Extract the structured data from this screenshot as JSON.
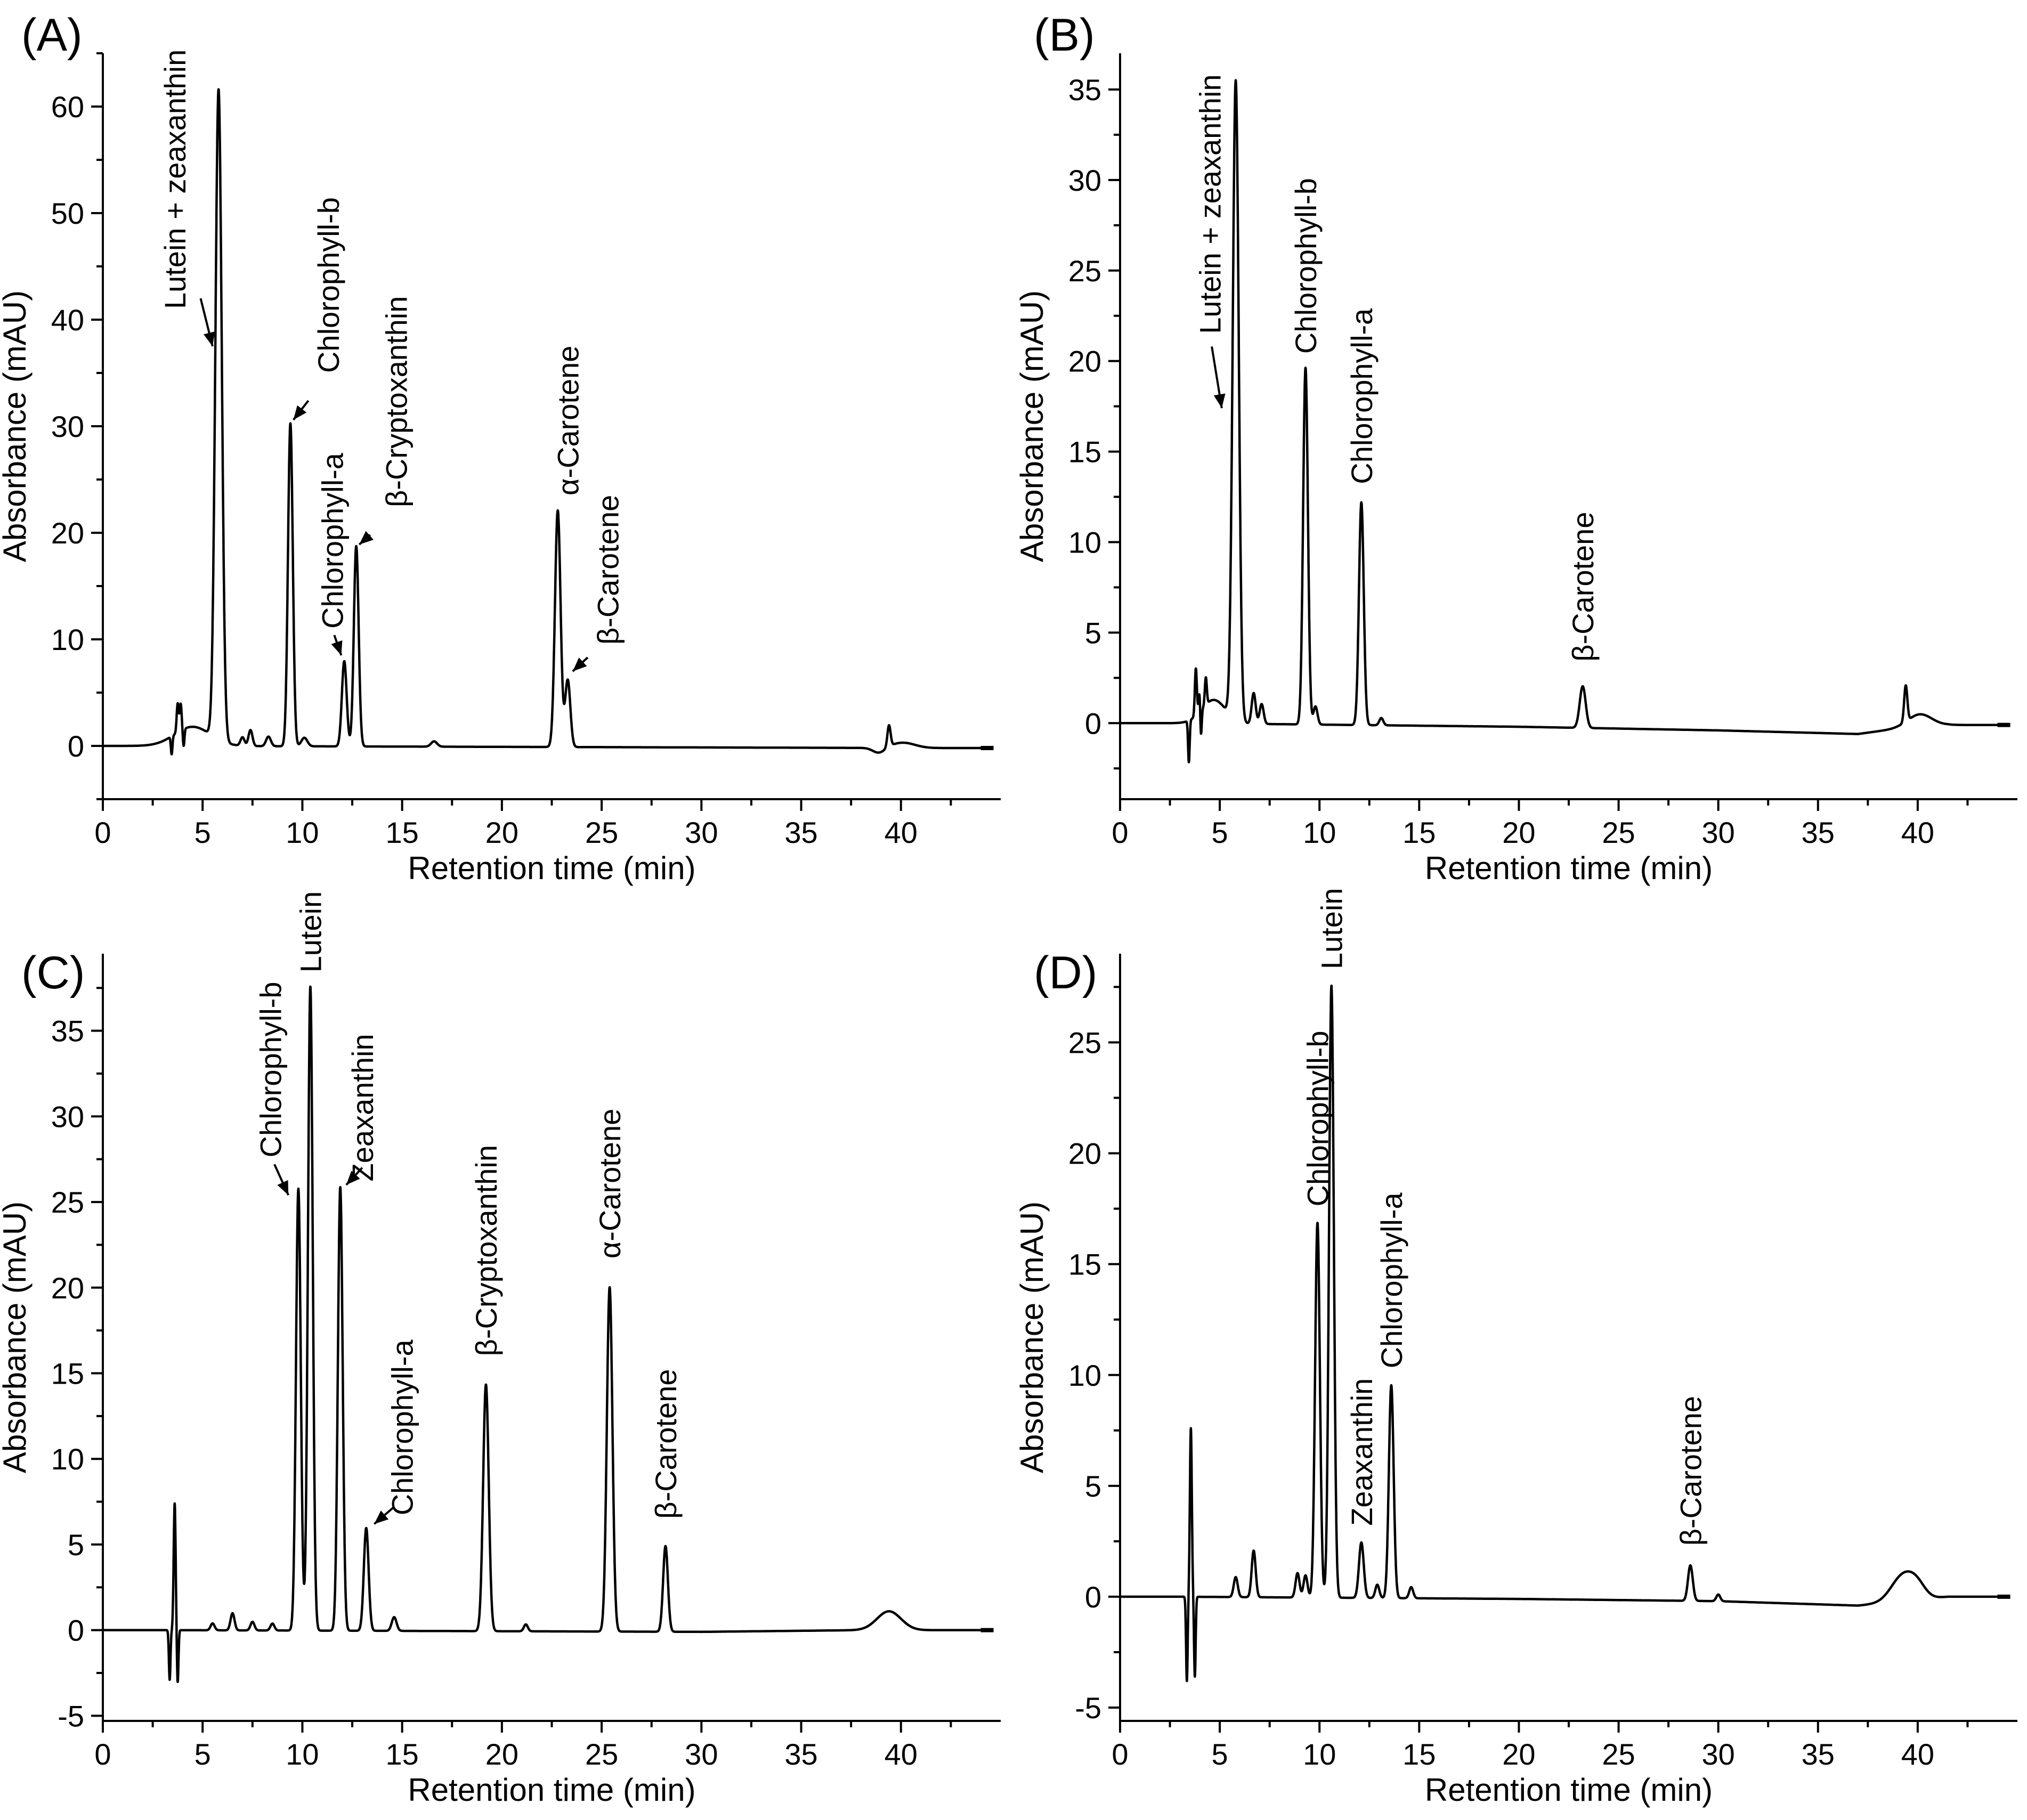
{
  "figure": {
    "description_text": []
  },
  "chart_data": [
    {
      "type": "line",
      "panel_label": "(A)",
      "xlabel": "Retention time (min)",
      "ylabel": "Absorbance (mAU)",
      "xlim": [
        0,
        45
      ],
      "ylim": [
        -5,
        65
      ],
      "xticks": [
        0,
        5,
        10,
        15,
        20,
        25,
        30,
        35,
        40
      ],
      "yticks": [
        0,
        10,
        20,
        30,
        40,
        50,
        60
      ],
      "baseline": [
        [
          0,
          0
        ],
        [
          3.2,
          0
        ],
        [
          40.5,
          -0.2
        ],
        [
          44.2,
          -0.2
        ]
      ],
      "dips": [
        {
          "rt": 3.45,
          "value": -1.7,
          "width": 0.04
        },
        {
          "rt": 4.05,
          "value": -1.6,
          "width": 0.04
        },
        {
          "rt": 38.9,
          "value": -0.5,
          "width": 0.3
        }
      ],
      "bumps": [
        {
          "rt": 4.5,
          "value": 1.8,
          "width": 0.9
        },
        {
          "rt": 40.1,
          "value": 0.5,
          "width": 0.6
        }
      ],
      "peaks": [
        {
          "rt": 3.75,
          "height": 2.7,
          "width": 0.05,
          "label": ""
        },
        {
          "rt": 3.9,
          "height": 2.5,
          "width": 0.05,
          "label": ""
        },
        {
          "rt": 5.8,
          "height": 61,
          "width": 0.16,
          "label": "Lutein + zeaxanthin"
        },
        {
          "rt": 7.0,
          "height": 0.8,
          "width": 0.1,
          "label": ""
        },
        {
          "rt": 7.4,
          "height": 1.5,
          "width": 0.1,
          "label": ""
        },
        {
          "rt": 8.3,
          "height": 0.9,
          "width": 0.12,
          "label": ""
        },
        {
          "rt": 9.4,
          "height": 30.3,
          "width": 0.12,
          "label": "Chlorophyll-b"
        },
        {
          "rt": 10.1,
          "height": 0.8,
          "width": 0.15,
          "label": ""
        },
        {
          "rt": 12.1,
          "height": 8.0,
          "width": 0.12,
          "label": "Chlorophyll-a"
        },
        {
          "rt": 12.7,
          "height": 18.8,
          "width": 0.12,
          "label": "β-Cryptoxanthin"
        },
        {
          "rt": 16.6,
          "height": 0.5,
          "width": 0.15,
          "label": ""
        },
        {
          "rt": 22.8,
          "height": 22.2,
          "width": 0.14,
          "label": "α-Carotene"
        },
        {
          "rt": 23.3,
          "height": 6.3,
          "width": 0.13,
          "label": "β-Carotene"
        },
        {
          "rt": 39.4,
          "height": 2.0,
          "width": 0.08,
          "label": ""
        }
      ],
      "annotations": [
        {
          "text": "Lutein + zeaxanthin",
          "rotation": -90,
          "tx": 3.6,
          "ty": 41,
          "arrow": {
            "x1": 4.9,
            "y1": 42,
            "x2": 5.5,
            "y2": 37.5
          }
        },
        {
          "text": "Chlorophyll-b",
          "rotation": -90,
          "tx": 11.3,
          "ty": 35,
          "arrow": {
            "x1": 10.3,
            "y1": 32.4,
            "x2": 9.55,
            "y2": 30.6
          }
        },
        {
          "text": "Chlorophyll-a",
          "rotation": -90,
          "tx": 11.5,
          "ty": 11,
          "arrow": {
            "x1": 11.6,
            "y1": 10.4,
            "x2": 11.95,
            "y2": 8.5
          }
        },
        {
          "text": "β-Cryptoxanthin",
          "rotation": -90,
          "tx": 14.7,
          "ty": 22.4,
          "arrow": {
            "x1": 13.4,
            "y1": 19.8,
            "x2": 12.85,
            "y2": 18.9
          }
        },
        {
          "text": "α-Carotene",
          "rotation": -90,
          "tx": 23.3,
          "ty": 23.5,
          "arrow": null
        },
        {
          "text": "β-Carotene",
          "rotation": -90,
          "tx": 25.3,
          "ty": 9.5,
          "arrow": {
            "x1": 24.3,
            "y1": 8.3,
            "x2": 23.55,
            "y2": 7.0
          }
        }
      ]
    },
    {
      "type": "line",
      "panel_label": "(B)",
      "xlabel": "Retention time (min)",
      "ylabel": "Absorbance (mAU)",
      "xlim": [
        0,
        45
      ],
      "ylim": [
        -4.2,
        37
      ],
      "xticks": [
        0,
        5,
        10,
        15,
        20,
        25,
        30,
        35,
        40
      ],
      "yticks": [
        0,
        5,
        10,
        15,
        20,
        25,
        30,
        35
      ],
      "baseline": [
        [
          0,
          0
        ],
        [
          3.2,
          0
        ],
        [
          20,
          -0.2
        ],
        [
          30,
          -0.4
        ],
        [
          37,
          -0.6
        ],
        [
          39,
          -0.3
        ],
        [
          41.5,
          -0.1
        ],
        [
          44.2,
          -0.1
        ]
      ],
      "dips": [
        {
          "rt": 3.45,
          "value": -2.3,
          "width": 0.04
        },
        {
          "rt": 4.05,
          "value": -2.1,
          "width": 0.04
        }
      ],
      "bumps": [
        {
          "rt": 4.7,
          "value": 1.3,
          "width": 0.6
        },
        {
          "rt": 40.1,
          "value": 0.7,
          "width": 0.6
        }
      ],
      "peaks": [
        {
          "rt": 3.8,
          "height": 2.6,
          "width": 0.05,
          "label": ""
        },
        {
          "rt": 4.0,
          "height": 1.5,
          "width": 0.05,
          "label": ""
        },
        {
          "rt": 4.3,
          "height": 1.5,
          "width": 0.05,
          "label": ""
        },
        {
          "rt": 5.8,
          "height": 35.3,
          "width": 0.15,
          "label": "Lutein + zeaxanthin"
        },
        {
          "rt": 6.7,
          "height": 1.7,
          "width": 0.1,
          "label": ""
        },
        {
          "rt": 7.1,
          "height": 1.1,
          "width": 0.1,
          "label": ""
        },
        {
          "rt": 9.3,
          "height": 19.7,
          "width": 0.12,
          "label": "Chlorophyll-b"
        },
        {
          "rt": 9.8,
          "height": 1.0,
          "width": 0.1,
          "label": ""
        },
        {
          "rt": 12.1,
          "height": 12.3,
          "width": 0.12,
          "label": "Chlorophyll-a"
        },
        {
          "rt": 13.1,
          "height": 0.4,
          "width": 0.1,
          "label": ""
        },
        {
          "rt": 23.2,
          "height": 2.3,
          "width": 0.15,
          "label": "β-Carotene"
        },
        {
          "rt": 39.4,
          "height": 2.0,
          "width": 0.08,
          "label": ""
        }
      ],
      "annotations": [
        {
          "text": "Lutein + zeaxanthin",
          "rotation": -90,
          "tx": 4.5,
          "ty": 21.5,
          "arrow": {
            "x1": 4.6,
            "y1": 20.8,
            "x2": 5.1,
            "y2": 17.4
          }
        },
        {
          "text": "Chlorophyll-b",
          "rotation": -90,
          "tx": 9.3,
          "ty": 20.4,
          "arrow": null
        },
        {
          "text": "Chlorophyll-a",
          "rotation": -90,
          "tx": 12.1,
          "ty": 13.2,
          "arrow": null
        },
        {
          "text": "β-Carotene",
          "rotation": -90,
          "tx": 23.2,
          "ty": 3.4,
          "arrow": null
        }
      ]
    },
    {
      "type": "line",
      "panel_label": "(C)",
      "xlabel": "Retention time (min)",
      "ylabel": "Absorbance (mAU)",
      "xlim": [
        0,
        45
      ],
      "ylim": [
        -5.3,
        39.5
      ],
      "xticks": [
        0,
        5,
        10,
        15,
        20,
        25,
        30,
        35,
        40
      ],
      "yticks": [
        -5,
        0,
        5,
        10,
        15,
        20,
        25,
        30,
        35
      ],
      "baseline": [
        [
          0,
          0
        ],
        [
          3.2,
          0
        ],
        [
          30,
          -0.1
        ],
        [
          38,
          0
        ],
        [
          41.5,
          0
        ],
        [
          44.2,
          0
        ]
      ],
      "dips": [
        {
          "rt": 3.35,
          "value": -2.9,
          "width": 0.04
        },
        {
          "rt": 3.75,
          "value": -3.1,
          "width": 0.04
        }
      ],
      "bumps": [
        {
          "rt": 39.4,
          "value": 1.1,
          "width": 0.6
        }
      ],
      "peaks": [
        {
          "rt": 3.6,
          "height": 7.4,
          "width": 0.05,
          "label": ""
        },
        {
          "rt": 5.5,
          "height": 0.4,
          "width": 0.1,
          "label": ""
        },
        {
          "rt": 6.5,
          "height": 1.0,
          "width": 0.1,
          "label": ""
        },
        {
          "rt": 7.5,
          "height": 0.5,
          "width": 0.1,
          "label": ""
        },
        {
          "rt": 8.5,
          "height": 0.4,
          "width": 0.1,
          "label": ""
        },
        {
          "rt": 9.8,
          "height": 25.8,
          "width": 0.12,
          "label": "Chlorophyll-b"
        },
        {
          "rt": 10.4,
          "height": 37.6,
          "width": 0.12,
          "label": "Lutein"
        },
        {
          "rt": 11.9,
          "height": 25.9,
          "width": 0.12,
          "label": "Zeaxanthin"
        },
        {
          "rt": 13.2,
          "height": 6.0,
          "width": 0.12,
          "label": "Chlorophyll-a"
        },
        {
          "rt": 14.6,
          "height": 0.8,
          "width": 0.12,
          "label": ""
        },
        {
          "rt": 19.2,
          "height": 14.4,
          "width": 0.14,
          "label": "β-Cryptoxanthin"
        },
        {
          "rt": 21.2,
          "height": 0.4,
          "width": 0.1,
          "label": ""
        },
        {
          "rt": 25.4,
          "height": 20.1,
          "width": 0.14,
          "label": "α-Carotene"
        },
        {
          "rt": 28.2,
          "height": 5.0,
          "width": 0.12,
          "label": "β-Carotene"
        }
      ],
      "annotations": [
        {
          "text": "Chlorophyll-b",
          "rotation": -90,
          "tx": 8.4,
          "ty": 27.6,
          "arrow": {
            "x1": 8.6,
            "y1": 27.2,
            "x2": 9.3,
            "y2": 25.4
          }
        },
        {
          "text": "Lutein",
          "rotation": -90,
          "tx": 10.4,
          "ty": 38.4,
          "arrow": null
        },
        {
          "text": "Zeaxanthin",
          "rotation": -90,
          "tx": 13.0,
          "ty": 26.2,
          "arrow": {
            "x1": 13.0,
            "y1": 27.0,
            "x2": 12.2,
            "y2": 26.0
          }
        },
        {
          "text": "Chlorophyll-a",
          "rotation": -90,
          "tx": 15.0,
          "ty": 6.7,
          "arrow": {
            "x1": 14.6,
            "y1": 7.2,
            "x2": 13.6,
            "y2": 6.2
          }
        },
        {
          "text": "β-Cryptoxanthin",
          "rotation": -90,
          "tx": 19.2,
          "ty": 16.0,
          "arrow": null
        },
        {
          "text": "α-Carotene",
          "rotation": -90,
          "tx": 25.4,
          "ty": 21.7,
          "arrow": null
        },
        {
          "text": "β-Carotene",
          "rotation": -90,
          "tx": 28.2,
          "ty": 6.5,
          "arrow": null
        }
      ]
    },
    {
      "type": "line",
      "panel_label": "(D)",
      "xlabel": "Retention time (min)",
      "ylabel": "Absorbance (mAU)",
      "xlim": [
        0,
        45
      ],
      "ylim": [
        -5.6,
        29
      ],
      "xticks": [
        0,
        5,
        10,
        15,
        20,
        25,
        30,
        35,
        40
      ],
      "yticks": [
        -5,
        0,
        5,
        10,
        15,
        20,
        25
      ],
      "baseline": [
        [
          0,
          0
        ],
        [
          3.2,
          0
        ],
        [
          20,
          -0.1
        ],
        [
          30,
          -0.2
        ],
        [
          37,
          -0.4
        ],
        [
          41.5,
          0
        ],
        [
          44.2,
          0
        ]
      ],
      "dips": [
        {
          "rt": 3.35,
          "value": -3.8,
          "width": 0.04
        },
        {
          "rt": 3.75,
          "value": -3.6,
          "width": 0.04
        }
      ],
      "bumps": [
        {
          "rt": 39.3,
          "value": 1.2,
          "width": 0.6
        },
        {
          "rt": 40.0,
          "value": 0.4,
          "width": 0.4
        }
      ],
      "peaks": [
        {
          "rt": 3.55,
          "height": 7.6,
          "width": 0.05,
          "label": ""
        },
        {
          "rt": 5.8,
          "height": 0.9,
          "width": 0.1,
          "label": ""
        },
        {
          "rt": 6.7,
          "height": 2.1,
          "width": 0.1,
          "label": ""
        },
        {
          "rt": 8.9,
          "height": 1.1,
          "width": 0.1,
          "label": ""
        },
        {
          "rt": 9.3,
          "height": 1.0,
          "width": 0.1,
          "label": ""
        },
        {
          "rt": 9.9,
          "height": 16.9,
          "width": 0.12,
          "label": "Chlorophyll-b"
        },
        {
          "rt": 10.6,
          "height": 27.6,
          "width": 0.12,
          "label": "Lutein"
        },
        {
          "rt": 12.1,
          "height": 2.5,
          "width": 0.12,
          "label": "Zeaxanthin"
        },
        {
          "rt": 12.9,
          "height": 0.6,
          "width": 0.1,
          "label": ""
        },
        {
          "rt": 13.6,
          "height": 9.6,
          "width": 0.12,
          "label": "Chlorophyll-a"
        },
        {
          "rt": 14.6,
          "height": 0.5,
          "width": 0.1,
          "label": ""
        },
        {
          "rt": 28.6,
          "height": 1.6,
          "width": 0.12,
          "label": "β-Carotene"
        },
        {
          "rt": 30.0,
          "height": 0.3,
          "width": 0.1,
          "label": ""
        }
      ],
      "annotations": [
        {
          "text": "Chlorophyll-b",
          "rotation": -90,
          "tx": 9.9,
          "ty": 17.6,
          "arrow": null
        },
        {
          "text": "Lutein",
          "rotation": -90,
          "tx": 10.6,
          "ty": 28.3,
          "arrow": null
        },
        {
          "text": "Zeaxanthin",
          "rotation": -90,
          "tx": 12.1,
          "ty": 3.2,
          "arrow": null
        },
        {
          "text": "Chlorophyll-a",
          "rotation": -90,
          "tx": 13.6,
          "ty": 10.3,
          "arrow": null
        },
        {
          "text": "β-Carotene",
          "rotation": -90,
          "tx": 28.6,
          "ty": 2.3,
          "arrow": null
        }
      ]
    }
  ]
}
